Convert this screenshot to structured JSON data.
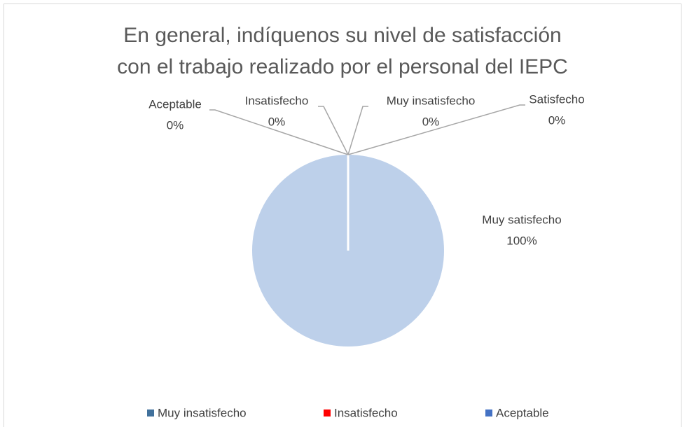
{
  "chart_data": {
    "type": "pie",
    "title": "En general, indíquenos su nivel de satisfacción con el trabajo realizado por el personal del IEPC",
    "categories": [
      "Muy insatisfecho",
      "Insatisfecho",
      "Aceptable",
      "Satisfecho",
      "Muy satisfecho"
    ],
    "values": [
      0,
      0,
      0,
      0,
      100
    ],
    "value_labels": [
      "0%",
      "0%",
      "0%",
      "0%",
      "100%"
    ],
    "colors": [
      "#41719c",
      "#ff0000",
      "#4472c4",
      "#a5a5a5",
      "#bdd0ea"
    ],
    "legend": "bottom"
  }
}
